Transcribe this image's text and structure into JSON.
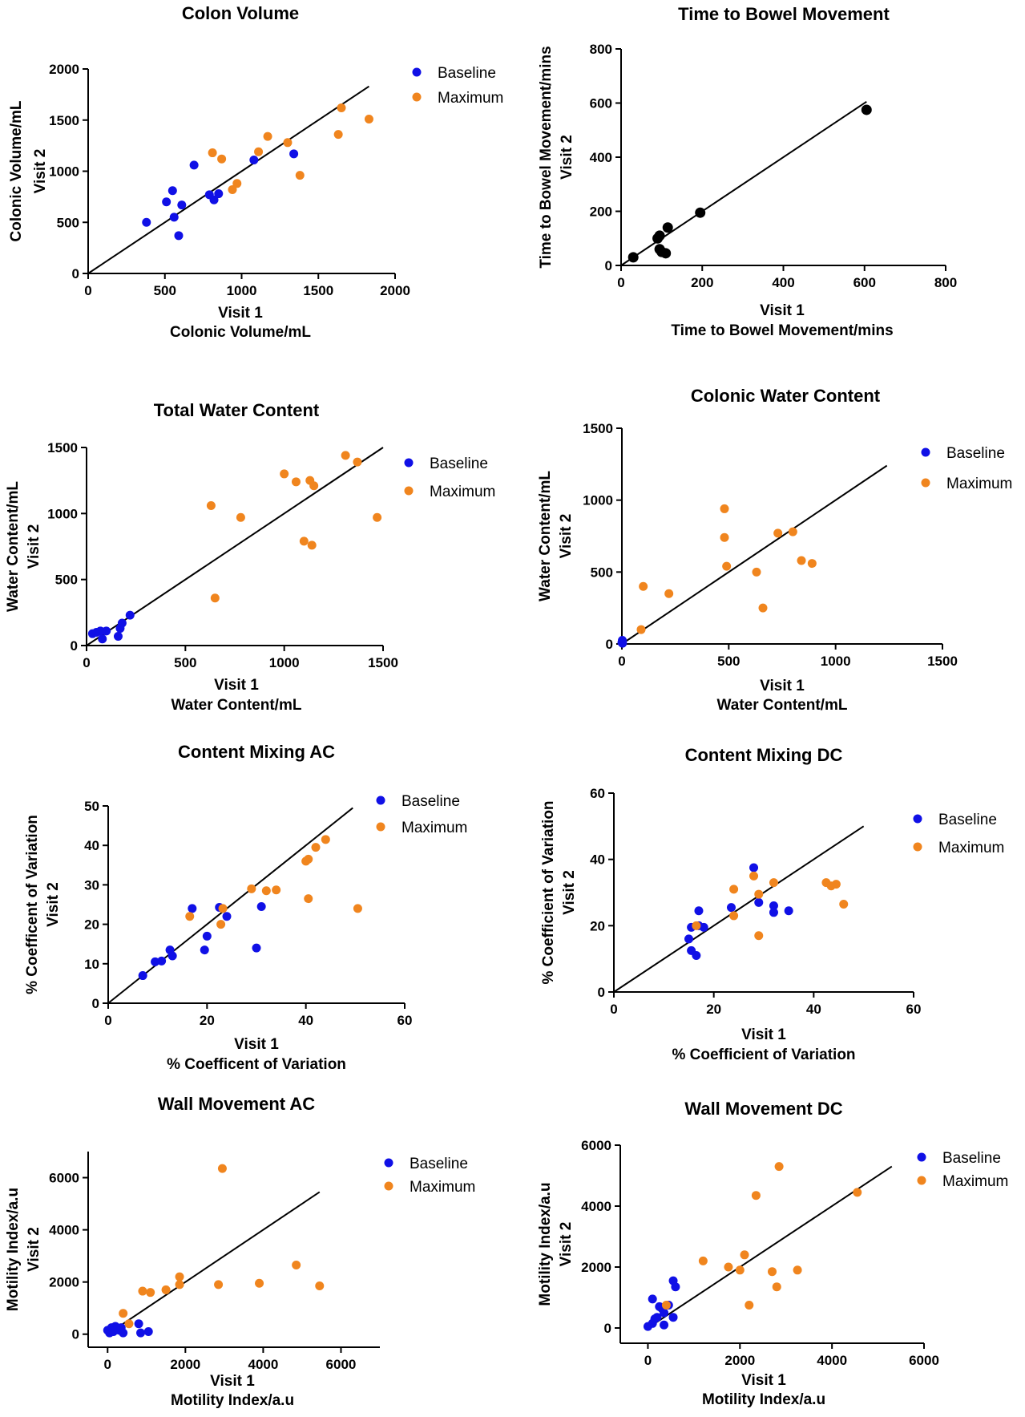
{
  "figure": {
    "colors": {
      "Baseline": "#1010e6",
      "Maximum": "#f0851e",
      "Single": "#000000"
    }
  },
  "chart_data": [
    {
      "id": "colon-volume",
      "type": "scatter",
      "title": "Colon Volume",
      "xlabel": [
        "Visit 1",
        "Colonic Volume/mL"
      ],
      "ylabel": [
        "Colonic Volume/mL",
        "Visit 2"
      ],
      "xlim": [
        0,
        2000
      ],
      "ylim": [
        0,
        2000
      ],
      "xticks": [
        0,
        500,
        1000,
        1500,
        2000
      ],
      "yticks": [
        0,
        500,
        1000,
        1500,
        2000
      ],
      "line": [
        [
          0,
          0
        ],
        [
          1830,
          1830
        ]
      ],
      "series": [
        {
          "name": "Baseline",
          "points": [
            [
              380,
              500
            ],
            [
              510,
              700
            ],
            [
              550,
              810
            ],
            [
              560,
              550
            ],
            [
              590,
              370
            ],
            [
              610,
              670
            ],
            [
              690,
              1060
            ],
            [
              790,
              770
            ],
            [
              820,
              720
            ],
            [
              850,
              780
            ],
            [
              1080,
              1110
            ],
            [
              1340,
              1170
            ]
          ]
        },
        {
          "name": "Maximum",
          "points": [
            [
              810,
              1180
            ],
            [
              870,
              1120
            ],
            [
              940,
              820
            ],
            [
              970,
              880
            ],
            [
              1110,
              1190
            ],
            [
              1170,
              1340
            ],
            [
              1300,
              1280
            ],
            [
              1380,
              960
            ],
            [
              1630,
              1360
            ],
            [
              1650,
              1620
            ],
            [
              1830,
              1510
            ]
          ]
        }
      ]
    },
    {
      "id": "time-to-bowel",
      "type": "scatter",
      "title": "Time to Bowel Movement",
      "xlabel": [
        "Visit 1",
        "Time to Bowel Movement/mins"
      ],
      "ylabel": [
        "Time to Bowel Movement/mins",
        "Visit 2"
      ],
      "xlim": [
        0,
        800
      ],
      "ylim": [
        0,
        800
      ],
      "xticks": [
        0,
        200,
        400,
        600,
        800
      ],
      "yticks": [
        0,
        200,
        400,
        600,
        800
      ],
      "line": [
        [
          0,
          0
        ],
        [
          605,
          605
        ]
      ],
      "series": [
        {
          "name": "",
          "points": [
            [
              30,
              30
            ],
            [
              90,
              100
            ],
            [
              95,
              110
            ],
            [
              95,
              60
            ],
            [
              100,
              50
            ],
            [
              110,
              45
            ],
            [
              115,
              140
            ],
            [
              195,
              195
            ],
            [
              605,
              575
            ]
          ]
        }
      ]
    },
    {
      "id": "total-water-content",
      "type": "scatter",
      "title": "Total Water Content",
      "xlabel": [
        "Visit 1",
        "Water Content/mL"
      ],
      "ylabel": [
        "Water Content/mL",
        "Visit 2"
      ],
      "xlim": [
        0,
        1500
      ],
      "ylim": [
        0,
        1500
      ],
      "xticks": [
        0,
        500,
        1000,
        1500
      ],
      "yticks": [
        0,
        500,
        1000,
        1500
      ],
      "line": [
        [
          0,
          0
        ],
        [
          1500,
          1500
        ]
      ],
      "series": [
        {
          "name": "Baseline",
          "points": [
            [
              30,
              90
            ],
            [
              50,
              100
            ],
            [
              70,
              110
            ],
            [
              80,
              50
            ],
            [
              100,
              110
            ],
            [
              160,
              70
            ],
            [
              170,
              130
            ],
            [
              180,
              170
            ],
            [
              220,
              230
            ]
          ]
        },
        {
          "name": "Maximum",
          "points": [
            [
              630,
              1060
            ],
            [
              650,
              360
            ],
            [
              780,
              970
            ],
            [
              1000,
              1300
            ],
            [
              1060,
              1240
            ],
            [
              1100,
              790
            ],
            [
              1130,
              1250
            ],
            [
              1140,
              760
            ],
            [
              1150,
              1210
            ],
            [
              1310,
              1440
            ],
            [
              1370,
              1390
            ],
            [
              1470,
              970
            ]
          ]
        }
      ]
    },
    {
      "id": "colonic-water-content",
      "type": "scatter",
      "title": "Colonic Water Content",
      "xlabel": [
        "Visit 1",
        "Water Content/mL"
      ],
      "ylabel": [
        "Water Content/mL",
        "Visit 2"
      ],
      "xlim": [
        0,
        1500
      ],
      "ylim": [
        0,
        1500
      ],
      "xticks": [
        0,
        500,
        1000,
        1500
      ],
      "yticks": [
        0,
        500,
        1000,
        1500
      ],
      "line": [
        [
          0,
          0
        ],
        [
          1240,
          1240
        ]
      ],
      "series": [
        {
          "name": "Baseline",
          "points": [
            [
              0,
              10
            ],
            [
              2,
              25
            ],
            [
              3,
              5
            ]
          ]
        },
        {
          "name": "Maximum",
          "points": [
            [
              90,
              100
            ],
            [
              100,
              400
            ],
            [
              220,
              350
            ],
            [
              480,
              940
            ],
            [
              480,
              740
            ],
            [
              490,
              540
            ],
            [
              630,
              500
            ],
            [
              660,
              250
            ],
            [
              730,
              770
            ],
            [
              800,
              780
            ],
            [
              840,
              580
            ],
            [
              890,
              560
            ]
          ]
        }
      ]
    },
    {
      "id": "content-mixing-ac",
      "type": "scatter",
      "title": "Content Mixing AC",
      "xlabel": [
        "Visit 1",
        "% Coefficent of  Variation"
      ],
      "ylabel": [
        "% Coefficent of  Variation",
        "Visit 2"
      ],
      "xlim": [
        0,
        60
      ],
      "ylim": [
        0,
        50
      ],
      "xticks": [
        0,
        20,
        40,
        60
      ],
      "yticks": [
        0,
        10,
        20,
        30,
        40,
        50
      ],
      "line": [
        [
          0,
          0
        ],
        [
          49.5,
          49.5
        ]
      ],
      "series": [
        {
          "name": "Baseline",
          "points": [
            [
              7,
              7
            ],
            [
              9.5,
              10.5
            ],
            [
              10.8,
              10.7
            ],
            [
              12.5,
              13.5
            ],
            [
              13,
              12
            ],
            [
              17,
              24
            ],
            [
              19.5,
              13.5
            ],
            [
              20,
              17
            ],
            [
              22.5,
              24.3
            ],
            [
              24,
              22
            ],
            [
              30,
              14
            ],
            [
              31,
              24.5
            ]
          ]
        },
        {
          "name": "Maximum",
          "points": [
            [
              16.5,
              22
            ],
            [
              22.8,
              20
            ],
            [
              23.2,
              24
            ],
            [
              29,
              29
            ],
            [
              32,
              28.5
            ],
            [
              34,
              28.7
            ],
            [
              40,
              36
            ],
            [
              40.5,
              36.5
            ],
            [
              40.5,
              26.5
            ],
            [
              42,
              39.5
            ],
            [
              44,
              41.5
            ],
            [
              50.5,
              24
            ]
          ]
        }
      ]
    },
    {
      "id": "content-mixing-dc",
      "type": "scatter",
      "title": "Content Mixing DC",
      "xlabel": [
        "Visit 1",
        "%  Coefficient of  Variation"
      ],
      "ylabel": [
        "%  Coefficient of  Variation",
        "Visit 2"
      ],
      "xlim": [
        0,
        60
      ],
      "ylim": [
        0,
        60
      ],
      "xticks": [
        0,
        20,
        40,
        60
      ],
      "yticks": [
        0,
        20,
        40,
        60
      ],
      "line": [
        [
          0,
          0
        ],
        [
          50,
          50
        ]
      ],
      "series": [
        {
          "name": "Baseline",
          "points": [
            [
              15,
              16
            ],
            [
              15.5,
              19.5
            ],
            [
              15.5,
              12.5
            ],
            [
              16.5,
              11
            ],
            [
              17,
              20
            ],
            [
              17,
              24.5
            ],
            [
              18,
              19.5
            ],
            [
              23.5,
              25.5
            ],
            [
              28,
              37.5
            ],
            [
              29,
              27
            ],
            [
              32,
              26
            ],
            [
              32,
              24
            ],
            [
              35,
              24.5
            ]
          ]
        },
        {
          "name": "Maximum",
          "points": [
            [
              16.5,
              20
            ],
            [
              24,
              23
            ],
            [
              24,
              31
            ],
            [
              28,
              35
            ],
            [
              29,
              29.5
            ],
            [
              29,
              17
            ],
            [
              32,
              33
            ],
            [
              42.5,
              33
            ],
            [
              43.5,
              32
            ],
            [
              44.5,
              32.5
            ],
            [
              46,
              26.5
            ]
          ]
        }
      ]
    },
    {
      "id": "wall-movement-ac",
      "type": "scatter",
      "title": "Wall Movement AC",
      "xlabel": [
        "Visit 1",
        "Motility Index/a.u"
      ],
      "ylabel": [
        "Motility Index/a.u",
        "Visit 2"
      ],
      "xlim": [
        -500,
        7000
      ],
      "ylim": [
        -500,
        7000
      ],
      "xticks": [
        0,
        2000,
        4000,
        6000
      ],
      "yticks": [
        0,
        2000,
        4000,
        6000
      ],
      "line": [
        [
          0,
          0
        ],
        [
          5450,
          5450
        ]
      ],
      "series": [
        {
          "name": "Baseline",
          "points": [
            [
              0,
              150
            ],
            [
              50,
              50
            ],
            [
              100,
              250
            ],
            [
              150,
              100
            ],
            [
              200,
              300
            ],
            [
              250,
              200
            ],
            [
              300,
              150
            ],
            [
              350,
              250
            ],
            [
              400,
              50
            ],
            [
              800,
              400
            ],
            [
              850,
              50
            ],
            [
              1050,
              100
            ]
          ]
        },
        {
          "name": "Maximum",
          "points": [
            [
              400,
              800
            ],
            [
              550,
              400
            ],
            [
              900,
              1650
            ],
            [
              1100,
              1600
            ],
            [
              1500,
              1700
            ],
            [
              1850,
              2200
            ],
            [
              1850,
              1900
            ],
            [
              2850,
              1900
            ],
            [
              2950,
              6350
            ],
            [
              3900,
              1950
            ],
            [
              4850,
              2650
            ],
            [
              5450,
              1850
            ]
          ]
        }
      ]
    },
    {
      "id": "wall-movement-dc",
      "type": "scatter",
      "title": "Wall Movement DC",
      "xlabel": [
        "Visit 1",
        "Motility Index/a.u"
      ],
      "ylabel": [
        "Motility Index/a.u",
        "Visit 2"
      ],
      "xlim": [
        -600,
        6000
      ],
      "ylim": [
        -500,
        6000
      ],
      "xticks": [
        0,
        2000,
        4000,
        6000
      ],
      "yticks": [
        0,
        2000,
        4000,
        6000
      ],
      "line": [
        [
          0,
          0
        ],
        [
          5300,
          5300
        ]
      ],
      "series": [
        {
          "name": "Baseline",
          "points": [
            [
              0,
              50
            ],
            [
              100,
              150
            ],
            [
              100,
              950
            ],
            [
              150,
              300
            ],
            [
              200,
              350
            ],
            [
              250,
              700
            ],
            [
              300,
              650
            ],
            [
              350,
              100
            ],
            [
              450,
              750
            ],
            [
              550,
              1550
            ],
            [
              600,
              1350
            ],
            [
              550,
              350
            ],
            [
              350,
              500
            ]
          ]
        },
        {
          "name": "Maximum",
          "points": [
            [
              400,
              750
            ],
            [
              1200,
              2200
            ],
            [
              1750,
              2000
            ],
            [
              2000,
              1900
            ],
            [
              2100,
              2400
            ],
            [
              2200,
              750
            ],
            [
              2350,
              4350
            ],
            [
              2700,
              1850
            ],
            [
              2800,
              1350
            ],
            [
              2850,
              5300
            ],
            [
              3250,
              1900
            ],
            [
              4550,
              4450
            ]
          ]
        }
      ]
    }
  ]
}
